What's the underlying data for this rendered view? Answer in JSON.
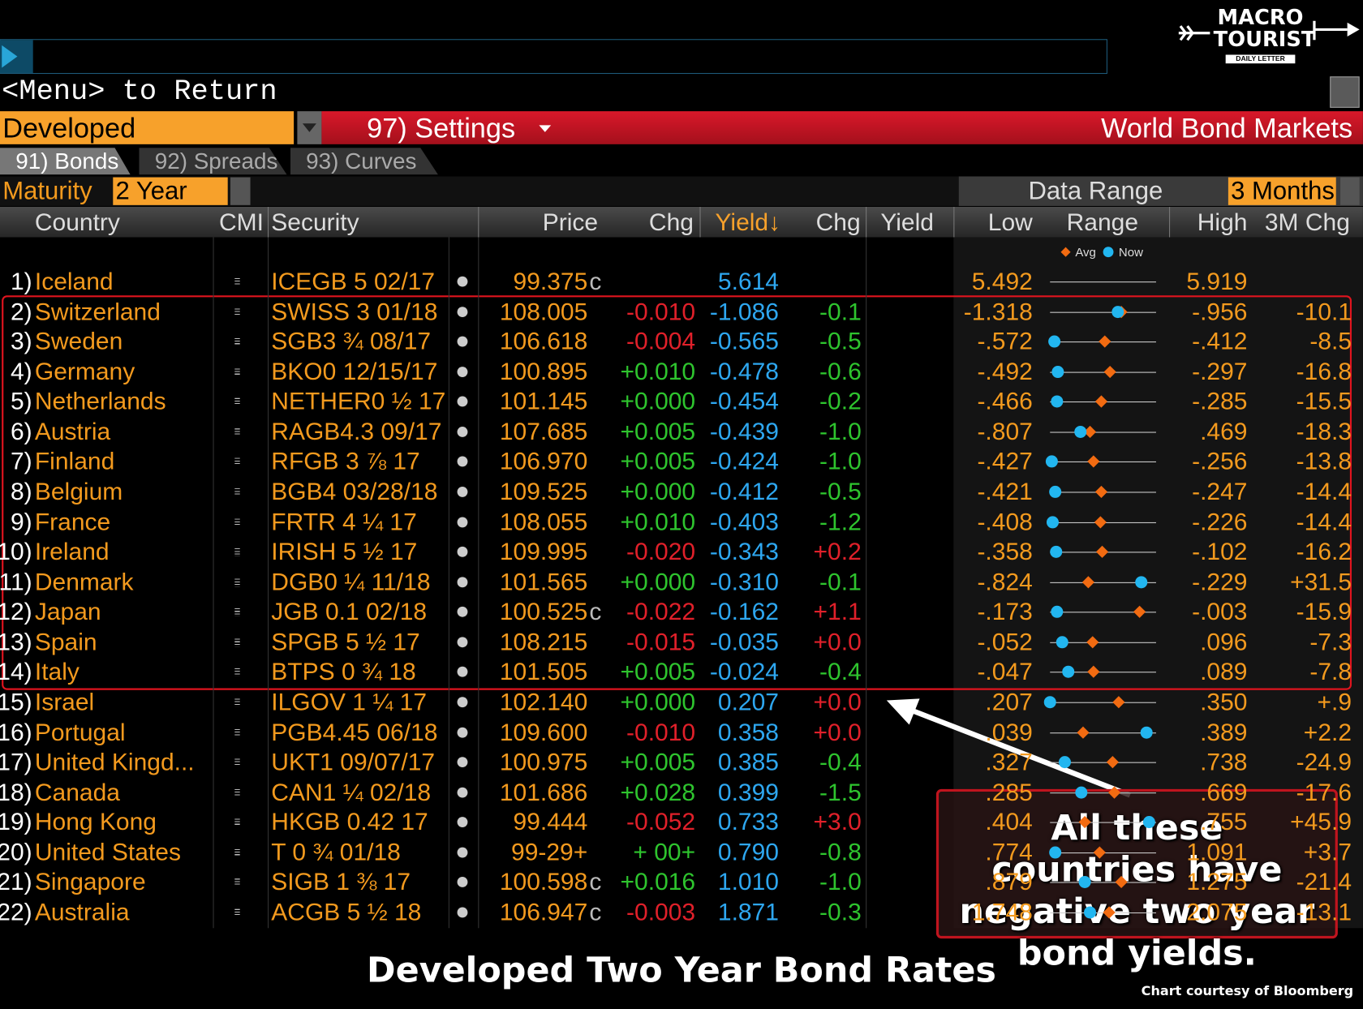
{
  "header": {
    "menu_text": "<Menu> to Return",
    "logo_top": "MACRO",
    "logo_mid": "TOURIST",
    "logo_sub": "DAILY LETTER"
  },
  "toolbar": {
    "dropdown": "Developed",
    "settings": "97) Settings",
    "title": "World Bond Markets"
  },
  "tabs": [
    "91) Bonds",
    "92) Spreads",
    "93) Curves"
  ],
  "filters": {
    "maturity_label": "Maturity",
    "maturity": "2 Year",
    "range_label": "Data Range",
    "range": "3 Months"
  },
  "legend": {
    "avg": "Avg",
    "now": "Now"
  },
  "table": {
    "columns": [
      "Country",
      "CMI",
      "Security",
      "Price",
      "Chg",
      "Yield↓",
      "Chg",
      "Yield",
      "Low",
      "Range",
      "High",
      "3M Chg"
    ],
    "rows": [
      {
        "num": "1)",
        "country": "Iceland",
        "security": "ICEGB 5 02/17",
        "price": "99.375",
        "price_flag": "c",
        "yield": {
          "value": 5.614,
          "label": "5.614"
        },
        "low": {
          "value": 5.492,
          "label": "5.492"
        },
        "high": {
          "value": 5.919,
          "label": "5.919"
        },
        "avg": null
      },
      {
        "num": "2)",
        "country": "Switzerland",
        "security": "SWISS 3 01/18",
        "price": "108.005",
        "chg": "-0.010",
        "yield": {
          "value": -1.086,
          "label": "-1.086"
        },
        "yield_chg": "-0.1",
        "low": {
          "value": -1.318,
          "label": "-1.318"
        },
        "high": {
          "value": -0.956,
          "label": "-.956"
        },
        "chg_3m": "-10.1",
        "avg": -1.075
      },
      {
        "num": "3)",
        "country": "Sweden",
        "security": "SGB3 ¾ 08/17",
        "price": "106.618",
        "chg": "-0.004",
        "yield": {
          "value": -0.565,
          "label": "-0.565"
        },
        "yield_chg": "-0.5",
        "low": {
          "value": -0.572,
          "label": "-.572"
        },
        "high": {
          "value": -0.412,
          "label": "-.412"
        },
        "chg_3m": "-8.5",
        "avg": -0.49
      },
      {
        "num": "4)",
        "country": "Germany",
        "security": "BKO0 12/15/17",
        "price": "100.895",
        "chg": "+0.010",
        "yield": {
          "value": -0.478,
          "label": "-0.478"
        },
        "yield_chg": "-0.6",
        "low": {
          "value": -0.492,
          "label": "-.492"
        },
        "high": {
          "value": -0.297,
          "label": "-.297"
        },
        "chg_3m": "-16.8",
        "avg": -0.381
      },
      {
        "num": "5)",
        "country": "Netherlands",
        "security": "NETHER0 ½ 17",
        "price": "101.145",
        "chg": "+0.000",
        "yield": {
          "value": -0.454,
          "label": "-0.454"
        },
        "yield_chg": "-0.2",
        "low": {
          "value": -0.466,
          "label": "-.466"
        },
        "high": {
          "value": -0.285,
          "label": "-.285"
        },
        "chg_3m": "-15.5",
        "avg": -0.379
      },
      {
        "num": "6)",
        "country": "Austria",
        "security": "RAGB4.3 09/17",
        "price": "107.685",
        "chg": "+0.005",
        "yield": {
          "value": -0.439,
          "label": "-0.439"
        },
        "yield_chg": "-1.0",
        "low": {
          "value": -0.807,
          "label": "-.807"
        },
        "high": {
          "value": 0.469,
          "label": ".469"
        },
        "chg_3m": "-18.3",
        "avg": -0.322
      },
      {
        "num": "7)",
        "country": "Finland",
        "security": "RFGB 3 ⅞ 17",
        "price": "106.970",
        "chg": "+0.005",
        "yield": {
          "value": -0.424,
          "label": "-0.424"
        },
        "yield_chg": "-1.0",
        "low": {
          "value": -0.427,
          "label": "-.427"
        },
        "high": {
          "value": -0.256,
          "label": "-.256"
        },
        "chg_3m": "-13.8",
        "avg": -0.357
      },
      {
        "num": "8)",
        "country": "Belgium",
        "security": "BGB4 03/28/18",
        "price": "109.525",
        "chg": "+0.000",
        "yield": {
          "value": -0.412,
          "label": "-0.412"
        },
        "yield_chg": "-0.5",
        "low": {
          "value": -0.421,
          "label": "-.421"
        },
        "high": {
          "value": -0.247,
          "label": "-.247"
        },
        "chg_3m": "-14.4",
        "avg": -0.337
      },
      {
        "num": "9)",
        "country": "France",
        "security": "FRTR 4 ¼ 17",
        "price": "108.055",
        "chg": "+0.010",
        "yield": {
          "value": -0.403,
          "label": "-0.403"
        },
        "yield_chg": "-1.2",
        "low": {
          "value": -0.408,
          "label": "-.408"
        },
        "high": {
          "value": -0.226,
          "label": "-.226"
        },
        "chg_3m": "-14.4",
        "avg": -0.321
      },
      {
        "num": "10)",
        "country": "Ireland",
        "security": "IRISH 5 ½ 17",
        "price": "109.995",
        "chg": "-0.020",
        "yield": {
          "value": -0.343,
          "label": "-0.343"
        },
        "yield_chg": "+0.2",
        "low": {
          "value": -0.358,
          "label": "-.358"
        },
        "high": {
          "value": -0.102,
          "label": "-.102"
        },
        "chg_3m": "-16.2",
        "avg": -0.233
      },
      {
        "num": "11)",
        "country": "Denmark",
        "security": "DGB0 ¼ 11/18",
        "price": "101.565",
        "chg": "+0.000",
        "yield": {
          "value": -0.31,
          "label": "-0.310"
        },
        "yield_chg": "-0.1",
        "low": {
          "value": -0.824,
          "label": "-.824"
        },
        "high": {
          "value": -0.229,
          "label": "-.229"
        },
        "chg_3m": "+31.5",
        "avg": -0.61
      },
      {
        "num": "12)",
        "country": "Japan",
        "security": "JGB 0.1 02/18",
        "price": "100.525",
        "price_flag": "c",
        "chg": "-0.022",
        "yield": {
          "value": -0.162,
          "label": "-0.162"
        },
        "yield_chg": "+1.1",
        "low": {
          "value": -0.173,
          "label": "-.173"
        },
        "high": {
          "value": -0.003,
          "label": "-.003"
        },
        "chg_3m": "-15.9",
        "avg": -0.03
      },
      {
        "num": "13)",
        "country": "Spain",
        "security": "SPGB 5 ½ 17",
        "price": "108.215",
        "chg": "-0.015",
        "yield": {
          "value": -0.035,
          "label": "-0.035"
        },
        "yield_chg": "+0.0",
        "low": {
          "value": -0.052,
          "label": "-.052"
        },
        "high": {
          "value": 0.096,
          "label": ".096"
        },
        "chg_3m": "-7.3",
        "avg": 0.007
      },
      {
        "num": "14)",
        "country": "Italy",
        "security": "BTPS 0 ¾ 18",
        "price": "101.505",
        "chg": "+0.005",
        "yield": {
          "value": -0.024,
          "label": "-0.024"
        },
        "yield_chg": "-0.4",
        "low": {
          "value": -0.047,
          "label": "-.047"
        },
        "high": {
          "value": 0.089,
          "label": ".089"
        },
        "chg_3m": "-7.8",
        "avg": 0.009
      },
      {
        "num": "15)",
        "country": "Israel",
        "security": "ILGOV 1 ¼ 17",
        "price": "102.140",
        "chg": "+0.000",
        "yield": {
          "value": 0.207,
          "label": "0.207"
        },
        "yield_chg": "+0.0",
        "low": {
          "value": 0.207,
          "label": ".207"
        },
        "high": {
          "value": 0.35,
          "label": ".350"
        },
        "chg_3m": "+.9",
        "avg": 0.3
      },
      {
        "num": "16)",
        "country": "Portugal",
        "security": "PGB4.45 06/18",
        "price": "109.600",
        "chg": "-0.010",
        "yield": {
          "value": 0.358,
          "label": "0.358"
        },
        "yield_chg": "+0.0",
        "low": {
          "value": 0.039,
          "label": ".039"
        },
        "high": {
          "value": 0.389,
          "label": ".389"
        },
        "chg_3m": "+2.2",
        "avg": 0.148
      },
      {
        "num": "17)",
        "country": "United Kingd...",
        "security": "UKT1 09/07/17",
        "price": "100.975",
        "chg": "+0.005",
        "yield": {
          "value": 0.385,
          "label": "0.385"
        },
        "yield_chg": "-0.4",
        "low": {
          "value": 0.327,
          "label": ".327"
        },
        "high": {
          "value": 0.738,
          "label": ".738"
        },
        "chg_3m": "-24.9",
        "avg": 0.569
      },
      {
        "num": "18)",
        "country": "Canada",
        "security": "CAN1 ¼ 02/18",
        "price": "101.686",
        "chg": "+0.028",
        "yield": {
          "value": 0.399,
          "label": "0.399"
        },
        "yield_chg": "-1.5",
        "low": {
          "value": 0.285,
          "label": ".285"
        },
        "high": {
          "value": 0.669,
          "label": ".669"
        },
        "chg_3m": "-17.6",
        "avg": 0.519
      },
      {
        "num": "19)",
        "country": "Hong Kong",
        "security": "HKGB 0.42 17",
        "price": "99.444",
        "chg": "-0.052",
        "yield": {
          "value": 0.733,
          "label": "0.733"
        },
        "yield_chg": "+3.0",
        "low": {
          "value": 0.404,
          "label": ".404"
        },
        "high": {
          "value": 0.755,
          "label": ".755"
        },
        "chg_3m": "+45.9",
        "avg": 0.52
      },
      {
        "num": "20)",
        "country": "United States",
        "security": "T 0 ¾ 01/18",
        "price": "99-29+",
        "chg": "+ 00+",
        "yield": {
          "value": 0.79,
          "label": "0.790"
        },
        "yield_chg": "-0.8",
        "low": {
          "value": 0.774,
          "label": ".774"
        },
        "high": {
          "value": 1.091,
          "label": "1.091"
        },
        "chg_3m": "+3.7",
        "avg": 0.923
      },
      {
        "num": "21)",
        "country": "Singapore",
        "security": "SIGB 1 ⅜ 17",
        "price": "100.598",
        "price_flag": "c",
        "chg": "+0.016",
        "yield": {
          "value": 1.01,
          "label": "1.010"
        },
        "yield_chg": "-1.0",
        "low": {
          "value": 0.879,
          "label": ".879"
        },
        "high": {
          "value": 1.275,
          "label": "1.275"
        },
        "chg_3m": "-21.4",
        "avg": 1.145
      },
      {
        "num": "22)",
        "country": "Australia",
        "security": "ACGB 5 ½ 18",
        "price": "106.947",
        "price_flag": "c",
        "chg": "-0.003",
        "yield": {
          "value": 1.871,
          "label": "1.871"
        },
        "yield_chg": "-0.3",
        "low": {
          "value": 1.748,
          "label": "1.748"
        },
        "high": {
          "value": 2.075,
          "label": "2.075"
        },
        "chg_3m": "-13.1",
        "avg": 1.93
      }
    ]
  },
  "annotation": "All these countries have negative two year bond yields.",
  "caption": "Developed Two Year Bond Rates",
  "credit": "Chart courtesy of Bloomberg"
}
